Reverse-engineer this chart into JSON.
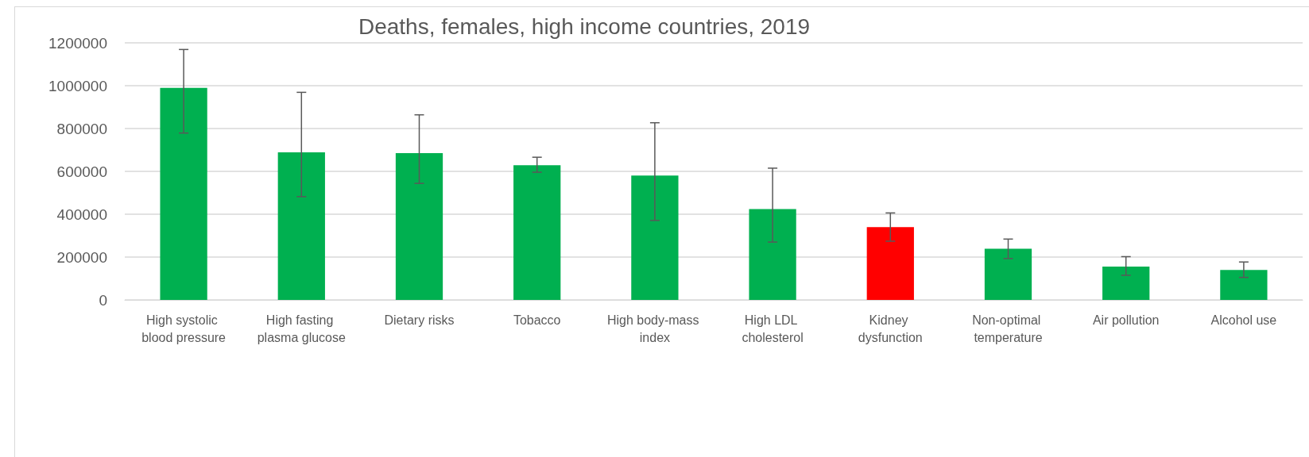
{
  "chart_data": {
    "type": "bar",
    "title": "Deaths, females, high income countries, 2019",
    "categories": [
      "High systolic blood pressure",
      "High fasting plasma glucose",
      "Dietary risks",
      "Tobacco",
      "High body-mass index",
      "High LDL cholesterol",
      "Kidney dysfunction",
      "Non-optimal temperature",
      "Air pollution",
      "Alcohol use"
    ],
    "values": [
      990000,
      689000,
      685000,
      629000,
      581000,
      424000,
      340000,
      239000,
      156000,
      140000
    ],
    "colors": [
      "#00b050",
      "#00b050",
      "#00b050",
      "#00b050",
      "#00b050",
      "#00b050",
      "#ff0000",
      "#00b050",
      "#00b050",
      "#00b050"
    ],
    "errors": [
      [
        779000,
        1169000
      ],
      [
        482000,
        969000
      ],
      [
        544000,
        864000
      ],
      [
        596000,
        666000
      ],
      [
        371000,
        827000
      ],
      [
        270000,
        615000
      ],
      [
        274000,
        406000
      ],
      [
        193000,
        284000
      ],
      [
        115000,
        202000
      ],
      [
        105000,
        177000
      ]
    ],
    "ylim": [
      0,
      1200000
    ],
    "yticks": [
      0,
      200000,
      400000,
      600000,
      800000,
      1000000,
      1200000
    ],
    "grid": "y"
  }
}
